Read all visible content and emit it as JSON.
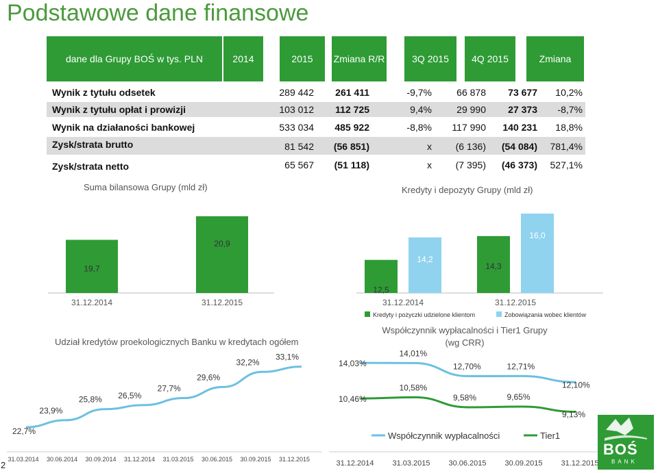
{
  "title": "Podstawowe dane finansowe",
  "table": {
    "headers": [
      "dane dla Grupy BOŚ w tys. PLN",
      "2014",
      "2015",
      "Zmiana R/R",
      "3Q 2015",
      "4Q 2015",
      "Zmiana"
    ],
    "rows": [
      {
        "label": "Wynik z tytułu odsetek",
        "v2014": "289 442",
        "v2015": "261 411",
        "yoy": "-9,7%",
        "q3": "66 878",
        "q4": "73 677",
        "qq": "10,2%"
      },
      {
        "label": "Wynik z tytułu opłat i prowizji",
        "v2014": "103 012",
        "v2015": "112 725",
        "yoy": "9,4%",
        "q3": "29 990",
        "q4": "27 373",
        "qq": "-8,7%"
      },
      {
        "label": "Wynik na działaności bankowej",
        "v2014": "533 034",
        "v2015": "485 922",
        "yoy": "-8,8%",
        "q3": "117 990",
        "q4": "140 231",
        "qq": "18,8%"
      },
      {
        "label": "Zysk/strata brutto",
        "v2014": "81 542",
        "v2015": "(56 851)",
        "yoy": "x",
        "q3": "(6 136)",
        "q4": "(54 084)",
        "qq": "781,4%"
      },
      {
        "label": "Zysk/strata netto",
        "v2014": "65 567",
        "v2015": "(51 118)",
        "yoy": "x",
        "q3": "(7 395)",
        "q4": "(46 373)",
        "qq": "527,1%"
      }
    ]
  },
  "colors": {
    "green": "#2e9b35",
    "light_blue": "#8fd3ef",
    "line_blue": "#6cc0e0",
    "shade": "#dcdcdc"
  },
  "page_number": "2",
  "logo": {
    "text": "BOŚ",
    "sub": "BANK"
  },
  "chart_data": [
    {
      "type": "bar",
      "title": "Suma bilansowa Grupy (mld zł)",
      "categories": [
        "31.12.2014",
        "31.12.2015"
      ],
      "values": [
        19.7,
        20.9
      ],
      "value_labels": [
        "19,7",
        "20,9"
      ],
      "ylim": [
        0,
        21
      ]
    },
    {
      "type": "bar",
      "title": "Kredyty i depozyty Grupy (mld zł)",
      "categories": [
        "31.12.2014",
        "31.12.2015"
      ],
      "series": [
        {
          "name": "Kredyty i pożyczki udzielone klientom",
          "color": "#2e9b35",
          "values": [
            12.5,
            14.3
          ],
          "labels": [
            "12,5",
            "14,3"
          ]
        },
        {
          "name": "Zobowiązania wobec klientów",
          "color": "#8fd3ef",
          "values": [
            14.2,
            16.0
          ],
          "labels": [
            "14,2",
            "16,0"
          ]
        }
      ],
      "ylim": [
        0,
        16
      ],
      "legend": "bottom"
    },
    {
      "type": "line",
      "title": "Udział kredytów proekologicznych Banku w kredytach ogółem",
      "x": [
        "31.03.2014",
        "30.06.2014",
        "30.09.2014",
        "31.12.2014",
        "31.03.2015",
        "30.06.2015",
        "30.09.2015",
        "31.12.2015"
      ],
      "series": [
        {
          "color": "#6cc0e0",
          "values": [
            22.7,
            23.9,
            25.8,
            26.5,
            27.7,
            29.6,
            32.2,
            33.1
          ],
          "labels": [
            "22,7%",
            "23,9%",
            "25,8%",
            "26,5%",
            "27,7%",
            "29,6%",
            "32,2%",
            "33,1%"
          ]
        }
      ],
      "ylim": [
        22,
        34
      ]
    },
    {
      "type": "line",
      "title": "Współczynnik wypłacalności i Tier1 Grupy (wg CRR)",
      "x": [
        "31.12.2014",
        "31.03.2015",
        "30.06.2015",
        "30.09.2015",
        "31.12.2015"
      ],
      "series": [
        {
          "name": "Współczynnik wypłacalności",
          "color": "#6cc0e0",
          "values": [
            14.03,
            14.01,
            12.7,
            12.71,
            12.1
          ],
          "labels": [
            "14,03%",
            "14,01%",
            "12,70%",
            "12,71%",
            "12,10%"
          ]
        },
        {
          "name": "Tier1",
          "color": "#2e9b35",
          "values": [
            10.46,
            10.58,
            9.58,
            9.65,
            9.13
          ],
          "labels": [
            "10,46%",
            "10,58%",
            "9,58%",
            "9,65%",
            "9,13%"
          ]
        }
      ],
      "ylim": [
        8,
        15
      ],
      "legend": "bottom"
    }
  ]
}
